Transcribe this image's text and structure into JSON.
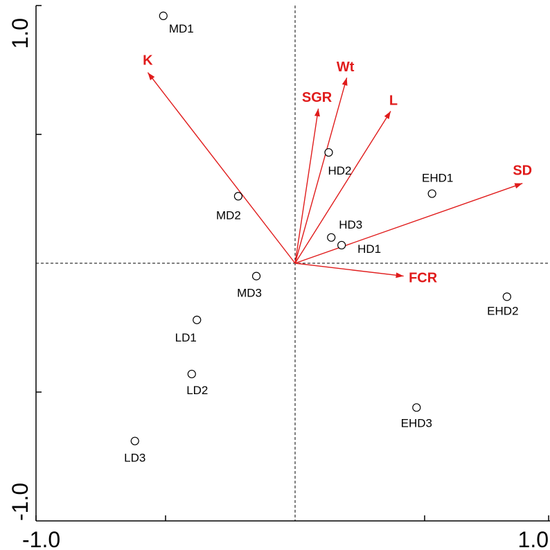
{
  "chart_data": {
    "type": "scatter",
    "title": "",
    "xlabel": "",
    "ylabel": "",
    "xlim": [
      -1.0,
      1.0
    ],
    "ylim": [
      -1.0,
      1.0
    ],
    "grid": false,
    "x_tick_labels": [
      "-1.0",
      "1.0"
    ],
    "y_tick_labels": [
      "1.0",
      "-1.0"
    ],
    "vector_color": "#e01b1b",
    "points": [
      {
        "label": "MD1",
        "x": -0.51,
        "y": 0.96
      },
      {
        "label": "MD2",
        "x": -0.22,
        "y": 0.26
      },
      {
        "label": "MD3",
        "x": -0.15,
        "y": -0.05
      },
      {
        "label": "HD2",
        "x": 0.13,
        "y": 0.43
      },
      {
        "label": "HD3",
        "x": 0.14,
        "y": 0.1
      },
      {
        "label": "HD1",
        "x": 0.18,
        "y": 0.07
      },
      {
        "label": "EHD1",
        "x": 0.53,
        "y": 0.27
      },
      {
        "label": "EHD2",
        "x": 0.82,
        "y": -0.13
      },
      {
        "label": "EHD3",
        "x": 0.47,
        "y": -0.56
      },
      {
        "label": "LD1",
        "x": -0.38,
        "y": -0.22
      },
      {
        "label": "LD2",
        "x": -0.4,
        "y": -0.43
      },
      {
        "label": "LD3",
        "x": -0.62,
        "y": -0.69
      }
    ],
    "vectors": [
      {
        "label": "K",
        "x": -0.57,
        "y": 0.74
      },
      {
        "label": "Wt",
        "x": 0.2,
        "y": 0.72
      },
      {
        "label": "SGR",
        "x": 0.09,
        "y": 0.6
      },
      {
        "label": "L",
        "x": 0.37,
        "y": 0.59
      },
      {
        "label": "SD",
        "x": 0.88,
        "y": 0.31
      },
      {
        "label": "FCR",
        "x": 0.42,
        "y": -0.05
      }
    ]
  }
}
